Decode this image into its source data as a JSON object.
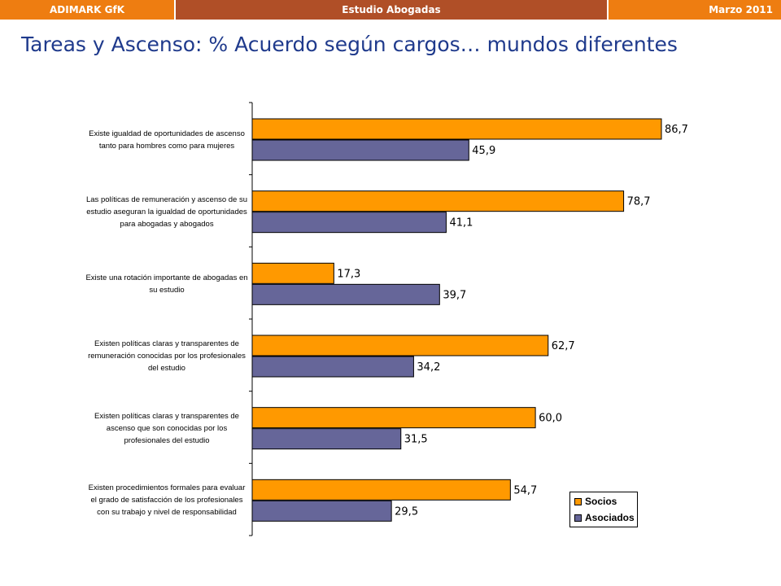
{
  "header": {
    "left": "ADIMARK GfK",
    "center": "Estudio Abogadas",
    "right": "Marzo 2011"
  },
  "title": "Tareas y Ascenso: % Acuerdo según cargos… mundos diferentes",
  "chart_data": {
    "type": "bar",
    "orientation": "horizontal",
    "categories": [
      "Existe igualdad de oportunidades de ascenso tanto para hombres como para mujeres",
      "Las políticas de remuneración y ascenso de su estudio aseguran la igualdad de oportunidades para abogadas y abogados",
      "Existe una rotación importante de abogadas en su estudio",
      "Existen políticas claras y transparentes de remuneración conocidas  por los profesionales del estudio",
      "Existen políticas claras y transparentes de ascenso que son conocidas por los profesionales del estudio",
      "Existen procedimientos formales para evaluar el grado de satisfacción de los profesionales con su trabajo y nivel de responsabilidad"
    ],
    "series": [
      {
        "name": "Socios",
        "color": "#ff9900",
        "values": [
          86.7,
          78.7,
          17.3,
          62.7,
          60.0,
          54.7
        ],
        "labels": [
          "86,7",
          "78,7",
          "17,3",
          "62,7",
          "60,0",
          "54,7"
        ]
      },
      {
        "name": "Asociados",
        "color": "#666699",
        "values": [
          45.9,
          41.1,
          39.7,
          34.2,
          31.5,
          29.5
        ],
        "labels": [
          "45,9",
          "41,1",
          "39,7",
          "34,2",
          "31,5",
          "29,5"
        ]
      }
    ],
    "xlim": [
      0,
      100
    ],
    "grid": false,
    "legend_position": "bottom-right"
  }
}
